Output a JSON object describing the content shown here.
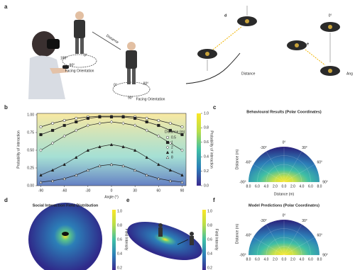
{
  "panel_labels": [
    "a",
    "b",
    "c",
    "d",
    "e",
    "f"
  ],
  "panel_a": {
    "distance": "Distance",
    "facing": "Facing Orientation",
    "deg": [
      "0°",
      "90°",
      "180°",
      "-90°"
    ],
    "sub_d": "d",
    "sub_e": "e",
    "right_distance": "Distance",
    "right_angle": "Ang",
    "right_deg": "0°"
  },
  "chart_data": [
    {
      "type": "line",
      "x_label": "Angle (°)",
      "y_label": "Probability of interaction",
      "legend_title": "Distance (m)",
      "x": [
        -90,
        -75,
        -60,
        -45,
        -30,
        -15,
        0,
        15,
        30,
        45,
        60,
        75,
        90
      ],
      "xlim": [
        -95,
        95
      ],
      "xticks": [
        -90,
        -60,
        -30,
        0,
        30,
        60,
        90
      ],
      "ylim": [
        0,
        1.02
      ],
      "yticks": [
        {
          "value": 0,
          "label": "0.00"
        },
        {
          "value": 0.25,
          "label": "0.25"
        },
        {
          "value": 0.5,
          "label": "0.50"
        },
        {
          "value": 0.75,
          "label": "0.75"
        },
        {
          "value": 1,
          "label": "1.00"
        }
      ],
      "series": [
        {
          "name": "0.5",
          "color": "#222222",
          "marker": "circle-open",
          "values": [
            0.83,
            0.88,
            0.92,
            0.95,
            0.97,
            0.98,
            0.98,
            0.98,
            0.97,
            0.95,
            0.92,
            0.88,
            0.83
          ]
        },
        {
          "name": "1",
          "color": "#222222",
          "marker": "square",
          "values": [
            0.72,
            0.78,
            0.85,
            0.9,
            0.95,
            0.97,
            0.97,
            0.97,
            0.95,
            0.9,
            0.85,
            0.78,
            0.72
          ]
        },
        {
          "name": "2",
          "color": "#222222",
          "marker": "diamond-open",
          "values": [
            0.5,
            0.6,
            0.7,
            0.78,
            0.85,
            0.88,
            0.9,
            0.88,
            0.85,
            0.78,
            0.7,
            0.6,
            0.5
          ]
        },
        {
          "name": "4",
          "color": "#222222",
          "marker": "triangle",
          "values": [
            0.15,
            0.22,
            0.3,
            0.4,
            0.5,
            0.55,
            0.58,
            0.55,
            0.5,
            0.4,
            0.3,
            0.22,
            0.15
          ]
        },
        {
          "name": "8",
          "color": "#222222",
          "marker": "triangle-open",
          "values": [
            0.05,
            0.07,
            0.1,
            0.15,
            0.22,
            0.28,
            0.3,
            0.28,
            0.22,
            0.15,
            0.1,
            0.07,
            0.05
          ]
        }
      ],
      "colorbar": {
        "label": "Probability of interaction",
        "lim": [
          0,
          1
        ],
        "ticks": [
          {
            "value": 0,
            "label": "0.0"
          },
          {
            "value": 0.2,
            "label": "0.2"
          },
          {
            "value": 0.4,
            "label": "0.4"
          },
          {
            "value": 0.6,
            "label": "0.6"
          },
          {
            "value": 0.8,
            "label": "0.8"
          },
          {
            "value": 1,
            "label": "1.0"
          }
        ]
      }
    }
  ],
  "panel_c": {
    "title": "Behavioural Results (Polar Coordinates)",
    "angle_labels": [
      "-90°",
      "-60°",
      "-30°",
      "0°",
      "30°",
      "60°",
      "90°"
    ],
    "distance_ticks": [
      "8.0",
      "6.0",
      "4.0",
      "2.0",
      "0.0",
      "2.0",
      "4.0",
      "6.0",
      "8.0"
    ],
    "x_label": "Distance (m)",
    "y_label": "Distance (m)"
  },
  "panel_d": {
    "title": "Social Interaction Field Distribution",
    "colorbar_ticks": [
      "1.0",
      "0.8",
      "0.6",
      "0.4",
      "0.2"
    ],
    "colorbar_label": "Field Intensity"
  },
  "panel_e": {
    "colorbar_ticks": [
      "1.0",
      "0.8",
      "0.6",
      "0.4",
      "0.2"
    ],
    "colorbar_label": "Field Intensity"
  },
  "panel_f": {
    "title": "Model Predictions (Polar Coordinates)",
    "angle_labels": [
      "-90°",
      "-60°",
      "-30°",
      "0°",
      "30°",
      "60°",
      "90°"
    ],
    "distance_ticks": [
      "8.0",
      "6.0",
      "4.0",
      "2.0",
      "0.0",
      "2.0",
      "4.0",
      "6.0",
      "8.0"
    ],
    "y_label": "Distance (m)"
  }
}
